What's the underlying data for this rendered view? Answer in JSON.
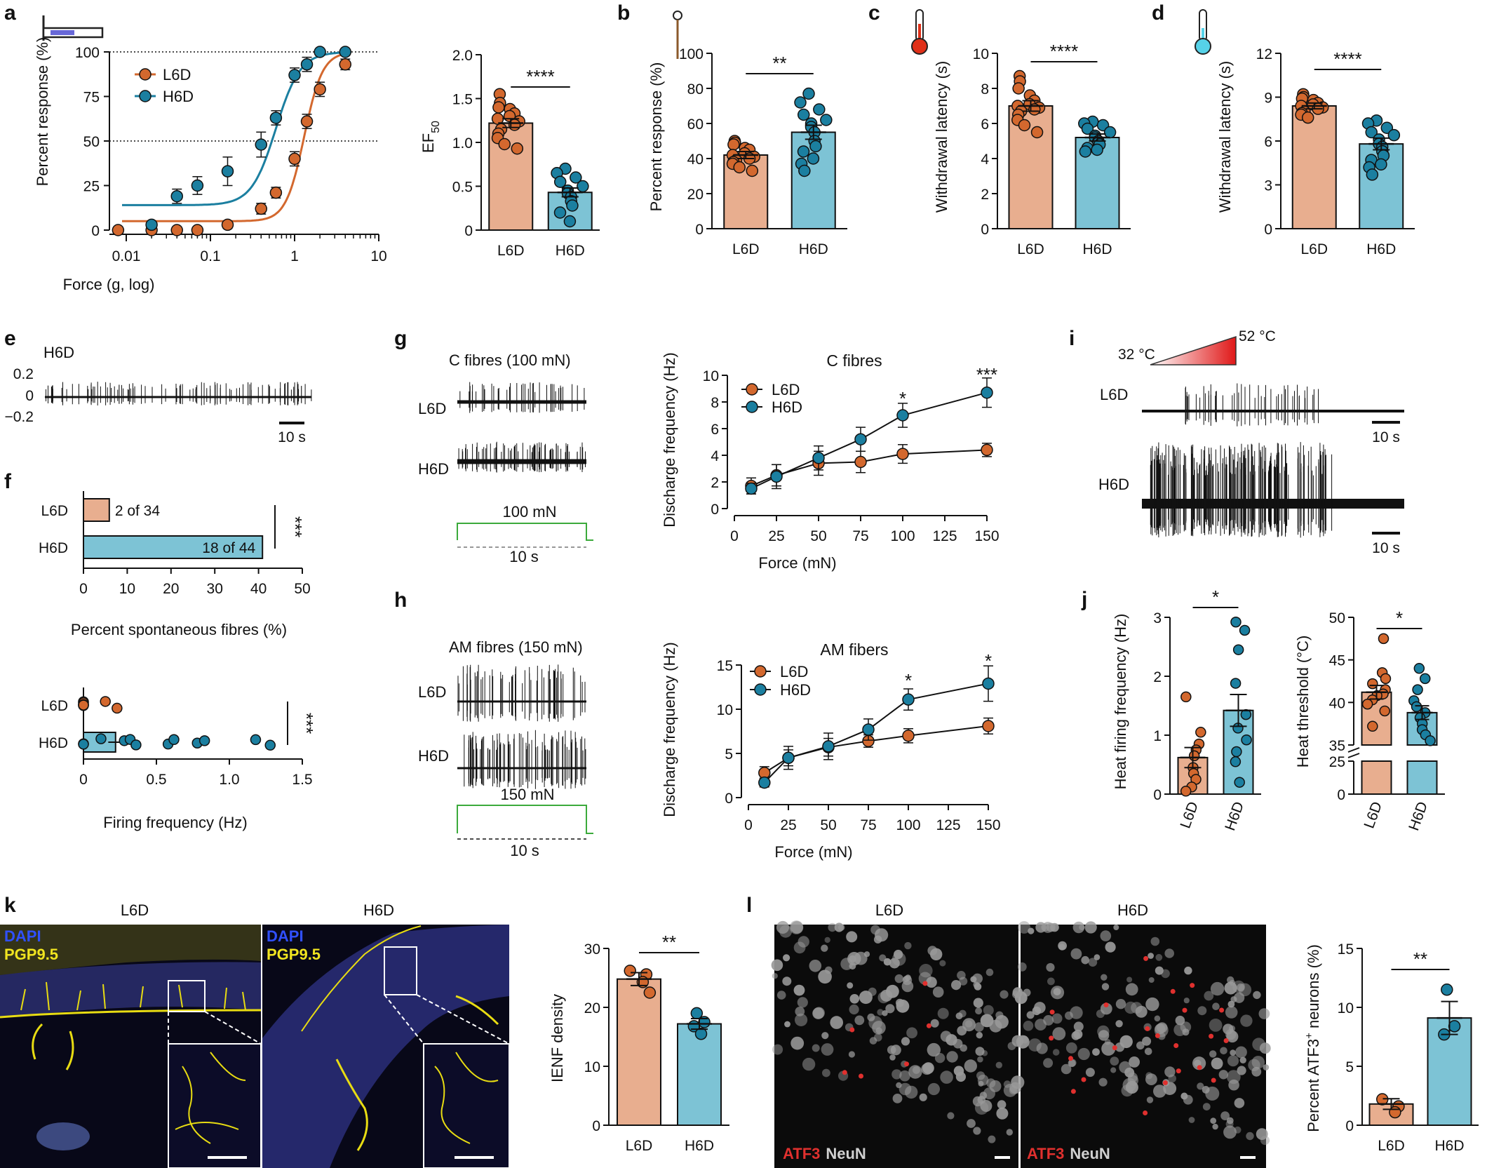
{
  "colors": {
    "L6D": "#D3682E",
    "H6D": "#1B7FA0",
    "L6D_bar": "#E8AE8F",
    "H6D_bar": "#7DC3D5",
    "trace": "#111111",
    "stim": "#3BAA3B",
    "micro_blue": "#1E3BB8",
    "micro_yellow": "#E8DC12",
    "micro_red": "#E0302E",
    "micro_grey": "#C8C8C8"
  },
  "panels": {
    "a": {
      "label": "a",
      "icon": "von-frey-filament-icon",
      "curve": {
        "type": "line",
        "xlabel": "Force (g, log)",
        "ylabel": "Percent response (%)",
        "xticks": [
          "0.01",
          "0.1",
          "1",
          "10"
        ],
        "yticks": [
          "0",
          "25",
          "50",
          "75",
          "100"
        ],
        "xlim_log10": [
          -2.2,
          1
        ],
        "ylim": [
          0,
          100
        ],
        "reference_lines": [
          50,
          100
        ],
        "legend": [
          "L6D",
          "H6D"
        ],
        "series": [
          {
            "name": "L6D",
            "x": [
              0.008,
              0.02,
              0.04,
              0.07,
              0.16,
              0.4,
              0.6,
              1.0,
              1.4,
              2.0,
              4.0
            ],
            "y": [
              0,
              0,
              0,
              0,
              3,
              12,
              21,
              40,
              61,
              79,
              93
            ],
            "err": [
              0,
              0,
              0,
              0,
              2,
              3,
              3,
              4,
              4,
              4,
              3
            ],
            "fit_min": 5,
            "fit_max": 100,
            "fit_ec50": 1.3,
            "fit_hill": 4
          },
          {
            "name": "H6D",
            "x": [
              0.02,
              0.04,
              0.07,
              0.16,
              0.4,
              0.6,
              1.0,
              1.4,
              2.0,
              4.0
            ],
            "y": [
              3,
              19,
              25,
              33,
              48,
              63,
              87,
              93,
              100,
              100
            ],
            "err": [
              0,
              4,
              5,
              8,
              7,
              4,
              4,
              4,
              0,
              0
            ],
            "fit_min": 14,
            "fit_max": 100,
            "fit_ec50": 0.6,
            "fit_hill": 3
          }
        ]
      },
      "bars": {
        "type": "bar",
        "categories": [
          "L6D",
          "H6D"
        ],
        "ylabel": "EF",
        "ylabel_sub": "50",
        "yticks": [
          "0",
          "0.5",
          "1.0",
          "1.5",
          "2.0"
        ],
        "ylim": [
          0,
          2
        ],
        "means": [
          1.22,
          0.43
        ],
        "sem": [
          0.05,
          0.05
        ],
        "points": [
          [
            1.55,
            1.45,
            1.4,
            1.38,
            1.33,
            1.3,
            1.27,
            1.24,
            1.2,
            1.15,
            1.1,
            1.05,
            0.98,
            0.93
          ],
          [
            0.7,
            0.65,
            0.6,
            0.55,
            0.5,
            0.45,
            0.42,
            0.38,
            0.33,
            0.28,
            0.2,
            0.1
          ]
        ],
        "significance": "****"
      }
    },
    "b": {
      "label": "b",
      "icon": "pin-probe-icon",
      "type": "bar",
      "categories": [
        "L6D",
        "H6D"
      ],
      "ylabel": "Percent response (%)",
      "yticks": [
        "0",
        "20",
        "40",
        "60",
        "80",
        "100"
      ],
      "ylim": [
        0,
        100
      ],
      "means": [
        42,
        55
      ],
      "sem": [
        2,
        4
      ],
      "points": [
        [
          50,
          49,
          48,
          46,
          45,
          43,
          42,
          41,
          40,
          39,
          38,
          37,
          35,
          33
        ],
        [
          77,
          72,
          68,
          65,
          62,
          60,
          58,
          55,
          50,
          47,
          44,
          40,
          37,
          33
        ]
      ],
      "significance": "**"
    },
    "c": {
      "label": "c",
      "icon": "hot-thermometer-icon",
      "type": "bar",
      "categories": [
        "L6D",
        "H6D"
      ],
      "ylabel": "Withdrawal latency (s)",
      "yticks": [
        "0",
        "2",
        "4",
        "6",
        "8",
        "10"
      ],
      "ylim": [
        0,
        10
      ],
      "means": [
        7.0,
        5.2
      ],
      "sem": [
        0.3,
        0.2
      ],
      "points": [
        [
          8.7,
          8.4,
          8.0,
          7.6,
          7.3,
          7.1,
          7.0,
          6.9,
          6.8,
          6.7,
          6.5,
          6.2,
          5.9,
          5.5
        ],
        [
          6.1,
          6.0,
          5.9,
          5.7,
          5.5,
          5.3,
          5.2,
          5.0,
          4.9,
          4.8,
          4.6,
          4.5,
          4.4
        ]
      ],
      "significance": "****"
    },
    "d": {
      "label": "d",
      "icon": "cold-thermometer-icon",
      "type": "bar",
      "categories": [
        "L6D",
        "H6D"
      ],
      "ylabel": "Withdrawal latency (s)",
      "yticks": [
        "0",
        "3",
        "6",
        "9",
        "12"
      ],
      "ylim": [
        0,
        12
      ],
      "means": [
        8.4,
        5.8
      ],
      "sem": [
        0.2,
        0.4
      ],
      "points": [
        [
          9.2,
          9.0,
          8.9,
          8.8,
          8.6,
          8.5,
          8.4,
          8.3,
          8.2,
          8.0,
          7.9,
          7.8,
          7.6
        ],
        [
          7.4,
          7.2,
          6.9,
          6.6,
          6.4,
          6.1,
          5.8,
          5.6,
          5.3,
          5.0,
          4.7,
          4.4,
          4.2,
          3.7
        ]
      ],
      "significance": "****"
    },
    "e": {
      "label": "e",
      "group": "H6D",
      "yticks": [
        "0.2",
        "0",
        "−0.2"
      ],
      "scale_bar": "10 s"
    },
    "f": {
      "label": "f",
      "top": {
        "type": "bar",
        "orientation": "horizontal",
        "categories": [
          "L6D",
          "H6D"
        ],
        "values": [
          5.9,
          40.9
        ],
        "value_labels": [
          "2 of 34",
          "18 of 44"
        ],
        "xlabel": "Percent spontaneous fibres (%)",
        "xticks": [
          "0",
          "10",
          "20",
          "30",
          "40",
          "50"
        ],
        "xlim": [
          0,
          50
        ],
        "significance": "***"
      },
      "bottom": {
        "type": "bar",
        "orientation": "horizontal",
        "categories": [
          "L6D",
          "H6D"
        ],
        "means": [
          0.0,
          0.22
        ],
        "sem": [
          0.0,
          0.05
        ],
        "points": [
          [
            0.0,
            0.0,
            0.0,
            0.0,
            0.0,
            0.0,
            0.15,
            0.23
          ],
          [
            0.0,
            0.0,
            0.12,
            0.28,
            0.32,
            0.36,
            0.58,
            0.62,
            0.78,
            0.83,
            1.18,
            1.28
          ]
        ],
        "xlabel": "Firing frequency (Hz)",
        "xticks": [
          "0",
          "0.5",
          "1.0",
          "1.5"
        ],
        "xlim": [
          0,
          1.5
        ],
        "significance": "***"
      }
    },
    "g": {
      "label": "g",
      "trace_title": "C fibres (100 mN)",
      "trace_labels": [
        "L6D",
        "H6D"
      ],
      "stim_label": "100 mN",
      "time_label": "10 s",
      "chart": {
        "type": "line",
        "title": "C fibres",
        "xlabel": "Force (mN)",
        "ylabel": "Discharge frequency (Hz)",
        "xticks": [
          "0",
          "25",
          "50",
          "75",
          "100",
          "125",
          "150"
        ],
        "yticks": [
          "0",
          "2",
          "4",
          "6",
          "8",
          "10"
        ],
        "xlim": [
          0,
          150
        ],
        "ylim": [
          0,
          10
        ],
        "legend": [
          "L6D",
          "H6D"
        ],
        "x": [
          10,
          25,
          50,
          75,
          100,
          150
        ],
        "series": [
          {
            "name": "L6D",
            "values": [
              1.7,
              2.5,
              3.4,
              3.5,
              4.1,
              4.4
            ],
            "err": [
              0.6,
              0.8,
              0.9,
              0.8,
              0.7,
              0.5
            ]
          },
          {
            "name": "H6D",
            "values": [
              1.5,
              2.4,
              3.8,
              5.2,
              7.0,
              8.7
            ],
            "err": [
              0.4,
              0.9,
              0.9,
              0.9,
              0.9,
              1.1
            ]
          }
        ],
        "annotations": [
          {
            "x": 100,
            "text": "*"
          },
          {
            "x": 150,
            "text": "***"
          }
        ]
      }
    },
    "h": {
      "label": "h",
      "trace_title": "AM fibres (150 mN)",
      "trace_labels": [
        "L6D",
        "H6D"
      ],
      "stim_label": "150 mN",
      "time_label": "10 s",
      "chart": {
        "type": "line",
        "title": "AM fibers",
        "xlabel": "Force (mN)",
        "ylabel": "Discharge frequency (Hz)",
        "xticks": [
          "0",
          "25",
          "50",
          "75",
          "100",
          "125",
          "150"
        ],
        "yticks": [
          "0",
          "5",
          "10",
          "15"
        ],
        "xlim": [
          0,
          150
        ],
        "ylim": [
          0,
          15
        ],
        "legend": [
          "L6D",
          "H6D"
        ],
        "x": [
          10,
          25,
          50,
          75,
          100,
          150
        ],
        "series": [
          {
            "name": "L6D",
            "values": [
              2.8,
              4.5,
              5.7,
              6.4,
              7.0,
              8.1
            ],
            "err": [
              0.7,
              0.9,
              1.0,
              0.7,
              0.8,
              0.9
            ]
          },
          {
            "name": "H6D",
            "values": [
              1.7,
              4.5,
              5.8,
              7.7,
              11.1,
              12.9
            ],
            "err": [
              0.5,
              1.3,
              1.5,
              1.2,
              1.2,
              2.0
            ]
          }
        ],
        "annotations": [
          {
            "x": 100,
            "text": "*"
          },
          {
            "x": 150,
            "text": "*"
          }
        ]
      }
    },
    "i": {
      "label": "i",
      "ramp_start": "32 °C",
      "ramp_end": "52 °C",
      "trace_labels": [
        "L6D",
        "H6D"
      ],
      "scale_bar": "10 s"
    },
    "j": {
      "label": "j",
      "left": {
        "type": "bar",
        "categories": [
          "L6D",
          "H6D"
        ],
        "ylabel": "Heat firing frequency (Hz)",
        "yticks": [
          "0",
          "1",
          "2",
          "3"
        ],
        "ylim": [
          0,
          3
        ],
        "means": [
          0.62,
          1.42
        ],
        "sem": [
          0.17,
          0.27
        ],
        "points": [
          [
            1.65,
            1.05,
            0.85,
            0.75,
            0.65,
            0.45,
            0.35,
            0.25,
            0.12,
            0.05
          ],
          [
            2.92,
            2.78,
            2.45,
            1.88,
            1.35,
            1.12,
            0.92,
            0.72,
            0.55,
            0.2
          ]
        ],
        "significance": "*"
      },
      "right": {
        "type": "bar",
        "categories": [
          "L6D",
          "H6D"
        ],
        "ylabel": "Heat threshold (°C)",
        "yticks": [
          "0",
          "25",
          "35",
          "40",
          "45",
          "50"
        ],
        "axis_break": [
          25,
          35
        ],
        "means": [
          41.2,
          38.8
        ],
        "sem": [
          0.8,
          0.8
        ],
        "points": [
          [
            47.5,
            43.5,
            42.8,
            42.2,
            41.5,
            41.0,
            40.8,
            40.3,
            39.8,
            39.0,
            37.2
          ],
          [
            44.0,
            42.8,
            41.5,
            40.2,
            39.5,
            38.8,
            38.2,
            37.5,
            36.8,
            36.2,
            35.5
          ]
        ],
        "significance": "*"
      }
    },
    "k": {
      "label": "k",
      "image_titles": [
        "L6D",
        "H6D"
      ],
      "stain_labels": [
        "DAPI",
        "PGP9.5"
      ],
      "chart": {
        "type": "bar",
        "categories": [
          "L6D",
          "H6D"
        ],
        "ylabel": "IENF density",
        "yticks": [
          "0",
          "10",
          "20",
          "30"
        ],
        "ylim": [
          0,
          30
        ],
        "means": [
          24.8,
          17.2
        ],
        "sem": [
          1.1,
          0.9
        ],
        "points": [
          [
            26.2,
            25.6,
            24.3,
            22.5
          ],
          [
            19.0,
            17.5,
            16.8,
            15.5
          ]
        ],
        "significance": "**"
      }
    },
    "l": {
      "label": "l",
      "image_titles": [
        "L6D",
        "H6D"
      ],
      "stain_labels": [
        "ATF3",
        "NeuN"
      ],
      "chart": {
        "type": "bar",
        "categories": [
          "L6D",
          "H6D"
        ],
        "ylabel": "Percent ATF3",
        "ylabel_sup": "+",
        "ylabel_rest": " neurons (%)",
        "yticks": [
          "0",
          "5",
          "10",
          "15"
        ],
        "ylim": [
          0,
          15
        ],
        "means": [
          1.8,
          9.1
        ],
        "sem": [
          0.45,
          1.4
        ],
        "points": [
          [
            2.2,
            1.6,
            1.1
          ],
          [
            11.5,
            8.4,
            7.7
          ]
        ],
        "significance": "**"
      }
    }
  }
}
